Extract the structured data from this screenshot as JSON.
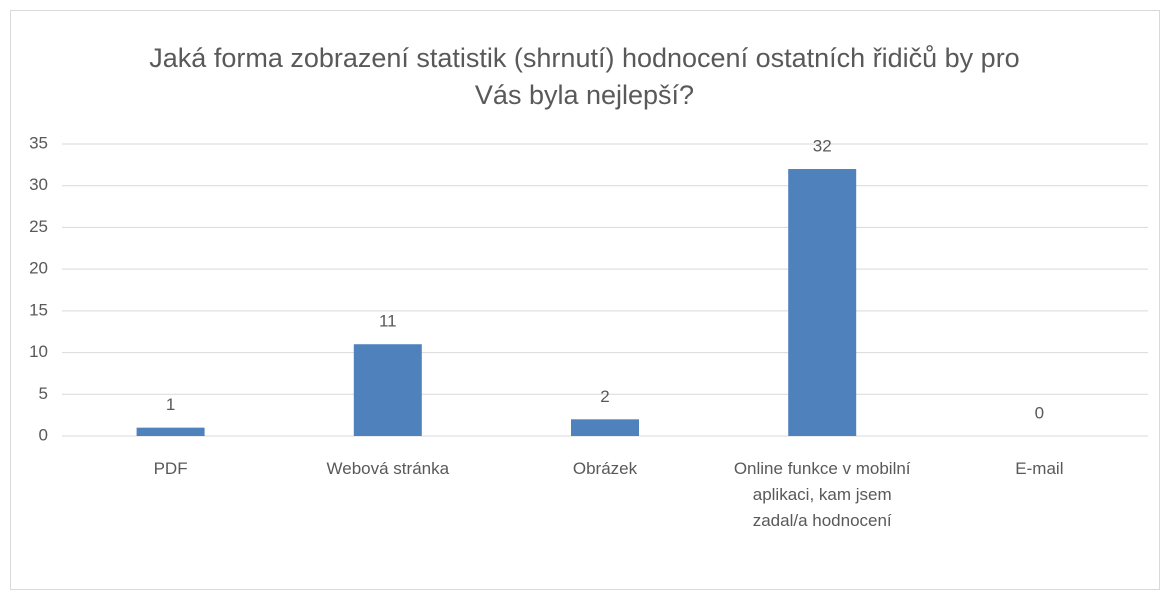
{
  "chart_data": {
    "type": "bar",
    "title": "Jaká forma zobrazení statistik (shrnutí) hodnocení ostatních řidičů by pro Vás byla nejlepší?",
    "categories": [
      "PDF",
      "Webová stránka",
      "Obrázek",
      "Online funkce v mobilní aplikaci, kam jsem zadal/a hodnocení",
      "E-mail"
    ],
    "values": [
      1,
      11,
      2,
      32,
      0
    ],
    "color": "#4f81bd",
    "ylim": [
      0,
      35
    ],
    "yticks": [
      0,
      5,
      10,
      15,
      20,
      25,
      30,
      35
    ],
    "grid": true
  }
}
